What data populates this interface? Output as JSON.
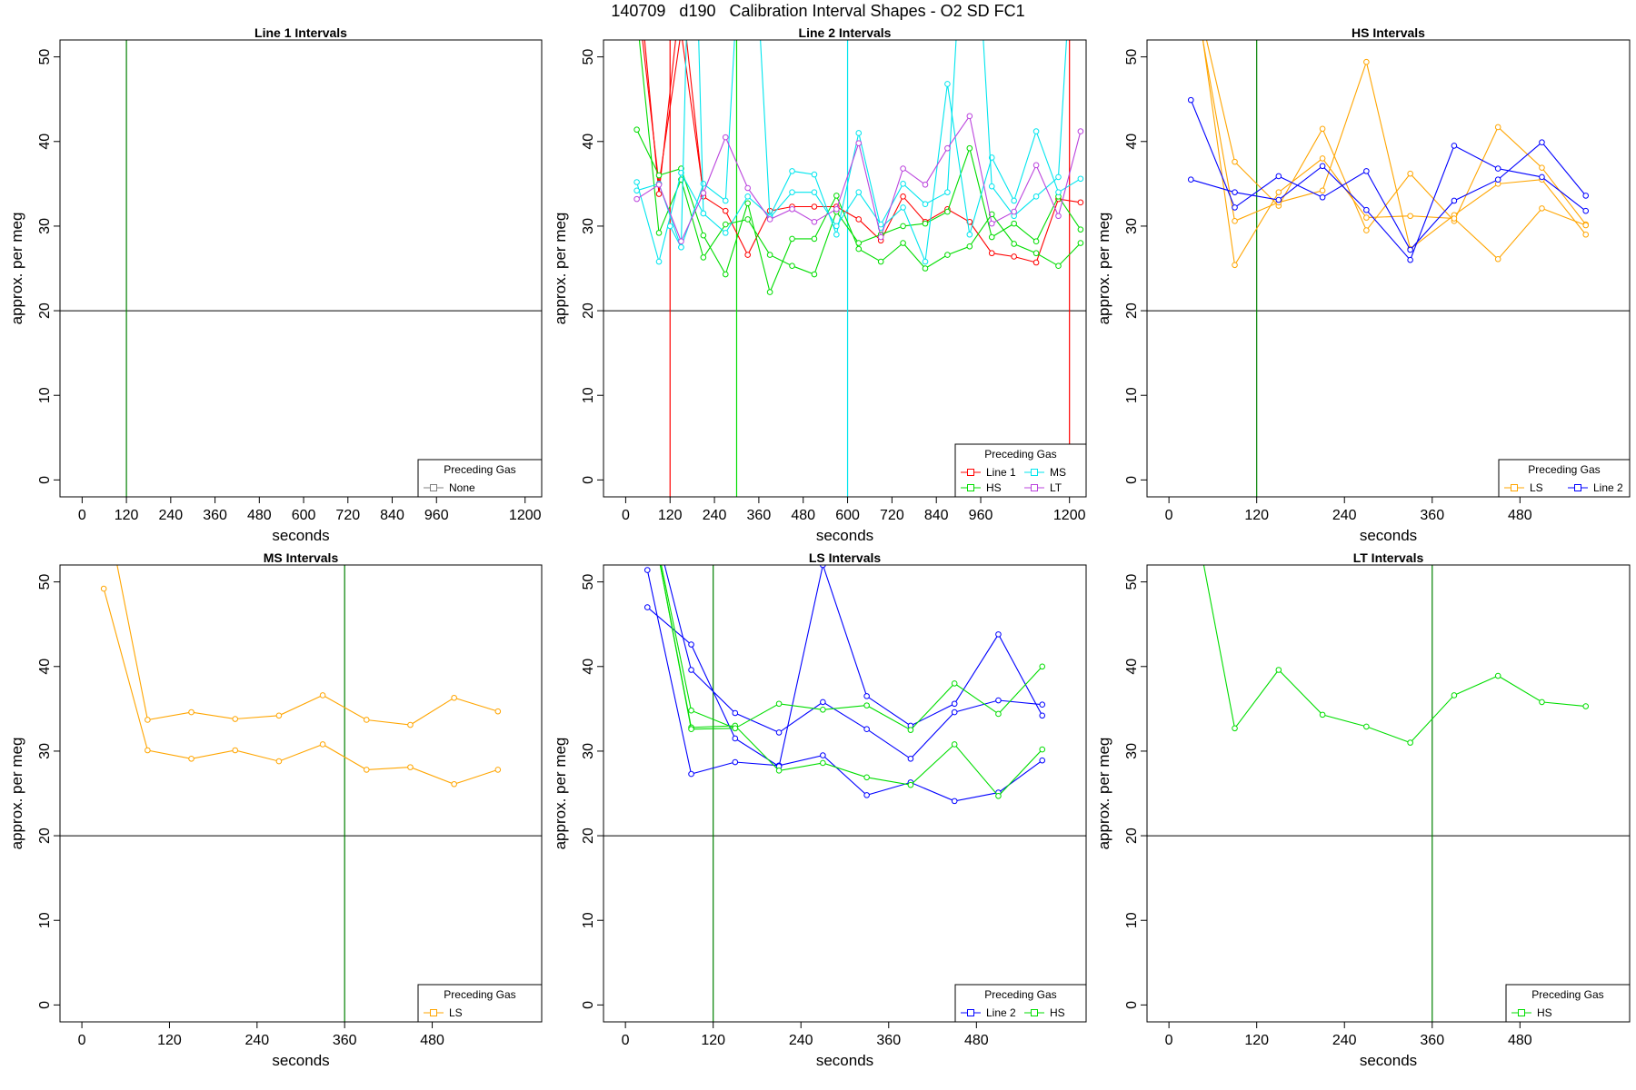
{
  "title": "140709   d190   Calibration Interval Shapes - O2 SD FC1",
  "colors": {
    "Line 1": "#ff0000",
    "Line 2": "#0000ff",
    "HS": "#00dd00",
    "MS": "#00e5ee",
    "LS": "#ffa500",
    "LT": "#bb44dd",
    "None": "#808080",
    "ref_line": "#008000",
    "hline": "#000000"
  },
  "chart_data": [
    {
      "type": "line",
      "title": "Line 1 Intervals",
      "xlabel": "seconds",
      "ylabel": "approx. per meg",
      "xlim": [
        -60,
        1245
      ],
      "ylim": [
        -2,
        52
      ],
      "xticks": [
        0,
        120,
        240,
        360,
        480,
        600,
        720,
        840,
        960,
        1200
      ],
      "yticks": [
        0,
        10,
        20,
        30,
        40,
        50
      ],
      "hline": 20,
      "vlines": [
        {
          "x": 120,
          "color": "ref_line"
        }
      ],
      "legend_title": "Preceding Gas",
      "legend_cols": 1,
      "legend": [
        "None"
      ],
      "series": []
    },
    {
      "type": "line",
      "title": "Line 2 Intervals",
      "xlabel": "seconds",
      "ylabel": "approx. per meg",
      "xlim": [
        -60,
        1245
      ],
      "ylim": [
        -2,
        52
      ],
      "xticks": [
        0,
        120,
        240,
        360,
        480,
        600,
        720,
        840,
        960,
        1200
      ],
      "yticks": [
        0,
        10,
        20,
        30,
        40,
        50
      ],
      "hline": 20,
      "vlines": [
        {
          "x": 120,
          "color": "Line 1"
        },
        {
          "x": 300,
          "color": "HS"
        },
        {
          "x": 600,
          "color": "MS"
        },
        {
          "x": 1200,
          "color": "Line 1"
        }
      ],
      "legend_title": "Preceding Gas",
      "legend_cols": 2,
      "legend": [
        "Line 1",
        "MS",
        "HS",
        "LT"
      ],
      "series": [
        {
          "name": "Line 1",
          "x": [
            30,
            90,
            150,
            210,
            270,
            330,
            390,
            450,
            510,
            570,
            630,
            690,
            750,
            810,
            870,
            930,
            990,
            1050,
            1110,
            1170,
            1230
          ],
          "values": [
            62,
            33.8,
            58,
            33.5,
            31.8,
            26.6,
            31.8,
            32.3,
            32.3,
            32.3,
            30.8,
            28.3,
            33.5,
            30.5,
            32.0,
            30.5,
            26.8,
            26.4,
            25.7,
            33.2,
            32.8
          ]
        },
        {
          "name": "Line 1",
          "x": [
            30,
            90,
            150,
            210
          ],
          "values": [
            58,
            35.0,
            53,
            33.9
          ]
        },
        {
          "name": "HS",
          "x": [
            30,
            90,
            150,
            210,
            270,
            330,
            390,
            450,
            510,
            570,
            630,
            690,
            750,
            810,
            870,
            930,
            990,
            1050,
            1110,
            1170,
            1230
          ],
          "values": [
            41.4,
            36.0,
            36.8,
            28.9,
            24.3,
            32.7,
            22.2,
            28.5,
            28.5,
            33.6,
            27.3,
            25.8,
            28.0,
            25.0,
            26.6,
            27.6,
            31.4,
            27.9,
            26.8,
            25.3,
            28.0
          ]
        },
        {
          "name": "HS",
          "x": [
            30,
            90,
            150,
            210,
            270,
            330,
            390,
            450,
            510,
            570,
            630,
            690,
            750,
            810,
            870,
            930,
            990,
            1050,
            1110,
            1170,
            1230
          ],
          "values": [
            55,
            29.2,
            35.5,
            26.3,
            30.2,
            30.8,
            26.6,
            25.3,
            24.3,
            31.7,
            28.0,
            29.0,
            30.0,
            30.3,
            31.7,
            39.2,
            28.7,
            30.3,
            28.2,
            33.5,
            29.6
          ]
        },
        {
          "name": "MS",
          "x": [
            30,
            90,
            150,
            210,
            270,
            330,
            390,
            450,
            510,
            570,
            630,
            690,
            750,
            810,
            870,
            930,
            990,
            1050,
            1110,
            1170,
            1230
          ],
          "values": [
            35.2,
            25.8,
            36.3,
            31.5,
            29.2,
            33.5,
            31.2,
            36.5,
            36.1,
            29.0,
            41.0,
            29.8,
            32.2,
            25.8,
            46.8,
            29.0,
            38.1,
            33.0,
            41.2,
            34.0,
            35.6
          ]
        },
        {
          "name": "MS",
          "x": [
            30,
            90,
            150,
            210,
            270,
            330,
            390,
            450,
            510,
            570,
            630,
            690,
            750,
            810,
            870,
            930,
            990,
            1050,
            1110,
            1170,
            1230
          ],
          "values": [
            34.2,
            35.0,
            27.5,
            35.0,
            33.0,
            80,
            31.0,
            34.0,
            34.0,
            30.0,
            34.0,
            30.2,
            35.0,
            32.6,
            34.0,
            80,
            34.7,
            31.2,
            33.5,
            35.8,
            80
          ]
        },
        {
          "name": "MS",
          "x": [
            120,
            150,
            180,
            210
          ],
          "values": [
            30.0,
            27.5,
            80,
            31.5
          ]
        },
        {
          "name": "LT",
          "x": [
            30,
            90,
            150,
            210,
            270,
            330,
            390,
            450,
            510,
            570,
            630,
            690,
            750,
            810,
            870,
            930,
            990,
            1050,
            1110,
            1170,
            1230
          ],
          "values": [
            33.2,
            34.9,
            28.2,
            33.9,
            40.5,
            34.5,
            30.8,
            32.0,
            30.5,
            32.0,
            39.8,
            28.7,
            36.8,
            34.9,
            39.2,
            43.0,
            30.3,
            31.7,
            37.2,
            31.2,
            41.2
          ]
        }
      ]
    },
    {
      "type": "line",
      "title": "HS Intervals",
      "xlabel": "seconds",
      "ylabel": "approx. per meg",
      "xlim": [
        -30,
        630
      ],
      "ylim": [
        -2,
        52
      ],
      "xticks": [
        0,
        120,
        240,
        360,
        480
      ],
      "yticks": [
        0,
        10,
        20,
        30,
        40,
        50
      ],
      "hline": 20,
      "vlines": [
        {
          "x": 120,
          "color": "ref_line"
        }
      ],
      "legend_title": "Preceding Gas",
      "legend_cols": 2,
      "legend": [
        "LS",
        "Line 2"
      ],
      "series": [
        {
          "name": "LS",
          "x": [
            30,
            90,
            150,
            210,
            270,
            330,
            390,
            450,
            510,
            570
          ],
          "values": [
            60,
            37.6,
            32.4,
            41.5,
            29.5,
            36.2,
            30.6,
            41.7,
            36.9,
            30.2
          ]
        },
        {
          "name": "LS",
          "x": [
            30,
            90,
            150,
            210,
            270,
            330,
            390,
            450,
            510,
            570
          ],
          "values": [
            60,
            30.6,
            32.8,
            34.2,
            49.4,
            27.3,
            31.3,
            35.0,
            35.5,
            29.0
          ]
        },
        {
          "name": "LS",
          "x": [
            30,
            90,
            150,
            210,
            270,
            330,
            390,
            450,
            510,
            570
          ],
          "values": [
            62,
            25.4,
            34.0,
            38.0,
            31.0,
            31.2,
            30.9,
            26.1,
            32.1,
            30.1
          ]
        },
        {
          "name": "Line 2",
          "x": [
            30,
            90,
            150,
            210,
            270,
            330,
            390,
            450,
            510,
            570
          ],
          "values": [
            44.9,
            32.2,
            35.9,
            33.4,
            36.5,
            27.2,
            33.0,
            35.5,
            39.9,
            33.6
          ]
        },
        {
          "name": "Line 2",
          "x": [
            30,
            90,
            150,
            210,
            270,
            330,
            390,
            450,
            510,
            570
          ],
          "values": [
            35.5,
            34.0,
            33.1,
            37.1,
            31.9,
            26.0,
            39.5,
            36.8,
            35.8,
            31.8
          ]
        }
      ]
    },
    {
      "type": "line",
      "title": "MS Intervals",
      "xlabel": "seconds",
      "ylabel": "approx. per meg",
      "xlim": [
        -30,
        630
      ],
      "ylim": [
        -2,
        52
      ],
      "xticks": [
        0,
        120,
        240,
        360,
        480
      ],
      "yticks": [
        0,
        10,
        20,
        30,
        40,
        50
      ],
      "hline": 20,
      "vlines": [
        {
          "x": 360,
          "color": "ref_line"
        }
      ],
      "legend_title": "Preceding Gas",
      "legend_cols": 1,
      "legend": [
        "LS"
      ],
      "series": [
        {
          "name": "LS",
          "x": [
            30,
            90,
            150,
            210,
            270,
            330,
            390,
            450,
            510,
            570
          ],
          "values": [
            60,
            33.7,
            34.6,
            33.8,
            34.2,
            36.6,
            33.7,
            33.1,
            36.3,
            34.7
          ]
        },
        {
          "name": "LS",
          "x": [
            30,
            90,
            150,
            210,
            270,
            330,
            390,
            450,
            510,
            570
          ],
          "values": [
            49.2,
            30.1,
            29.1,
            30.1,
            28.8,
            30.8,
            27.8,
            28.1,
            26.1,
            27.8
          ]
        }
      ]
    },
    {
      "type": "line",
      "title": "LS Intervals",
      "xlabel": "seconds",
      "ylabel": "approx. per meg",
      "xlim": [
        -30,
        630
      ],
      "ylim": [
        -2,
        52
      ],
      "xticks": [
        0,
        120,
        240,
        360,
        480
      ],
      "yticks": [
        0,
        10,
        20,
        30,
        40,
        50
      ],
      "hline": 20,
      "vlines": [
        {
          "x": 120,
          "color": "ref_line"
        }
      ],
      "legend_title": "Preceding Gas",
      "legend_cols": 2,
      "legend": [
        "Line 2",
        "HS"
      ],
      "series": [
        {
          "name": "Line 2",
          "x": [
            30,
            90,
            150,
            210,
            270,
            330,
            390,
            450,
            510,
            570
          ],
          "values": [
            51.4,
            27.3,
            28.7,
            28.3,
            29.5,
            24.8,
            26.3,
            24.1,
            25.1,
            28.9
          ]
        },
        {
          "name": "Line 2",
          "x": [
            30,
            90,
            150,
            210,
            270,
            330,
            390,
            450,
            510,
            570
          ],
          "values": [
            47.0,
            42.6,
            31.5,
            28.2,
            52.0,
            36.5,
            33.0,
            35.6,
            43.8,
            34.2
          ]
        },
        {
          "name": "Line 2",
          "x": [
            30,
            90,
            150,
            210,
            270,
            330,
            390,
            450,
            510,
            570
          ],
          "values": [
            60,
            39.6,
            34.5,
            32.2,
            35.8,
            32.6,
            29.1,
            34.6,
            36.0,
            35.5
          ]
        },
        {
          "name": "HS",
          "x": [
            30,
            90,
            150,
            210,
            270,
            330,
            390,
            450,
            510,
            570
          ],
          "values": [
            60,
            34.8,
            32.7,
            35.6,
            34.9,
            35.4,
            32.5,
            38.0,
            34.4,
            40.0
          ]
        },
        {
          "name": "HS",
          "x": [
            30,
            90,
            150,
            210,
            270,
            330,
            390,
            450,
            510,
            570
          ],
          "values": [
            60,
            32.8,
            33.0,
            27.7,
            28.6,
            26.9,
            26.0,
            30.8,
            24.7,
            30.2
          ]
        },
        {
          "name": "HS",
          "x": [
            30,
            90,
            150
          ],
          "values": [
            60,
            32.6,
            32.7
          ]
        }
      ]
    },
    {
      "type": "line",
      "title": "LT Intervals",
      "xlabel": "seconds",
      "ylabel": "approx. per meg",
      "xlim": [
        -30,
        630
      ],
      "ylim": [
        -2,
        52
      ],
      "xticks": [
        0,
        120,
        240,
        360,
        480
      ],
      "yticks": [
        0,
        10,
        20,
        30,
        40,
        50
      ],
      "hline": 20,
      "vlines": [
        {
          "x": 360,
          "color": "ref_line"
        }
      ],
      "legend_title": "Preceding Gas",
      "legend_cols": 1,
      "legend": [
        "HS"
      ],
      "series": [
        {
          "name": "HS",
          "x": [
            30,
            90,
            150,
            210,
            270,
            330,
            390,
            450,
            510,
            570
          ],
          "values": [
            60,
            32.7,
            39.6,
            34.3,
            32.9,
            31.0,
            36.6,
            38.9,
            35.8,
            35.3
          ]
        }
      ]
    }
  ]
}
